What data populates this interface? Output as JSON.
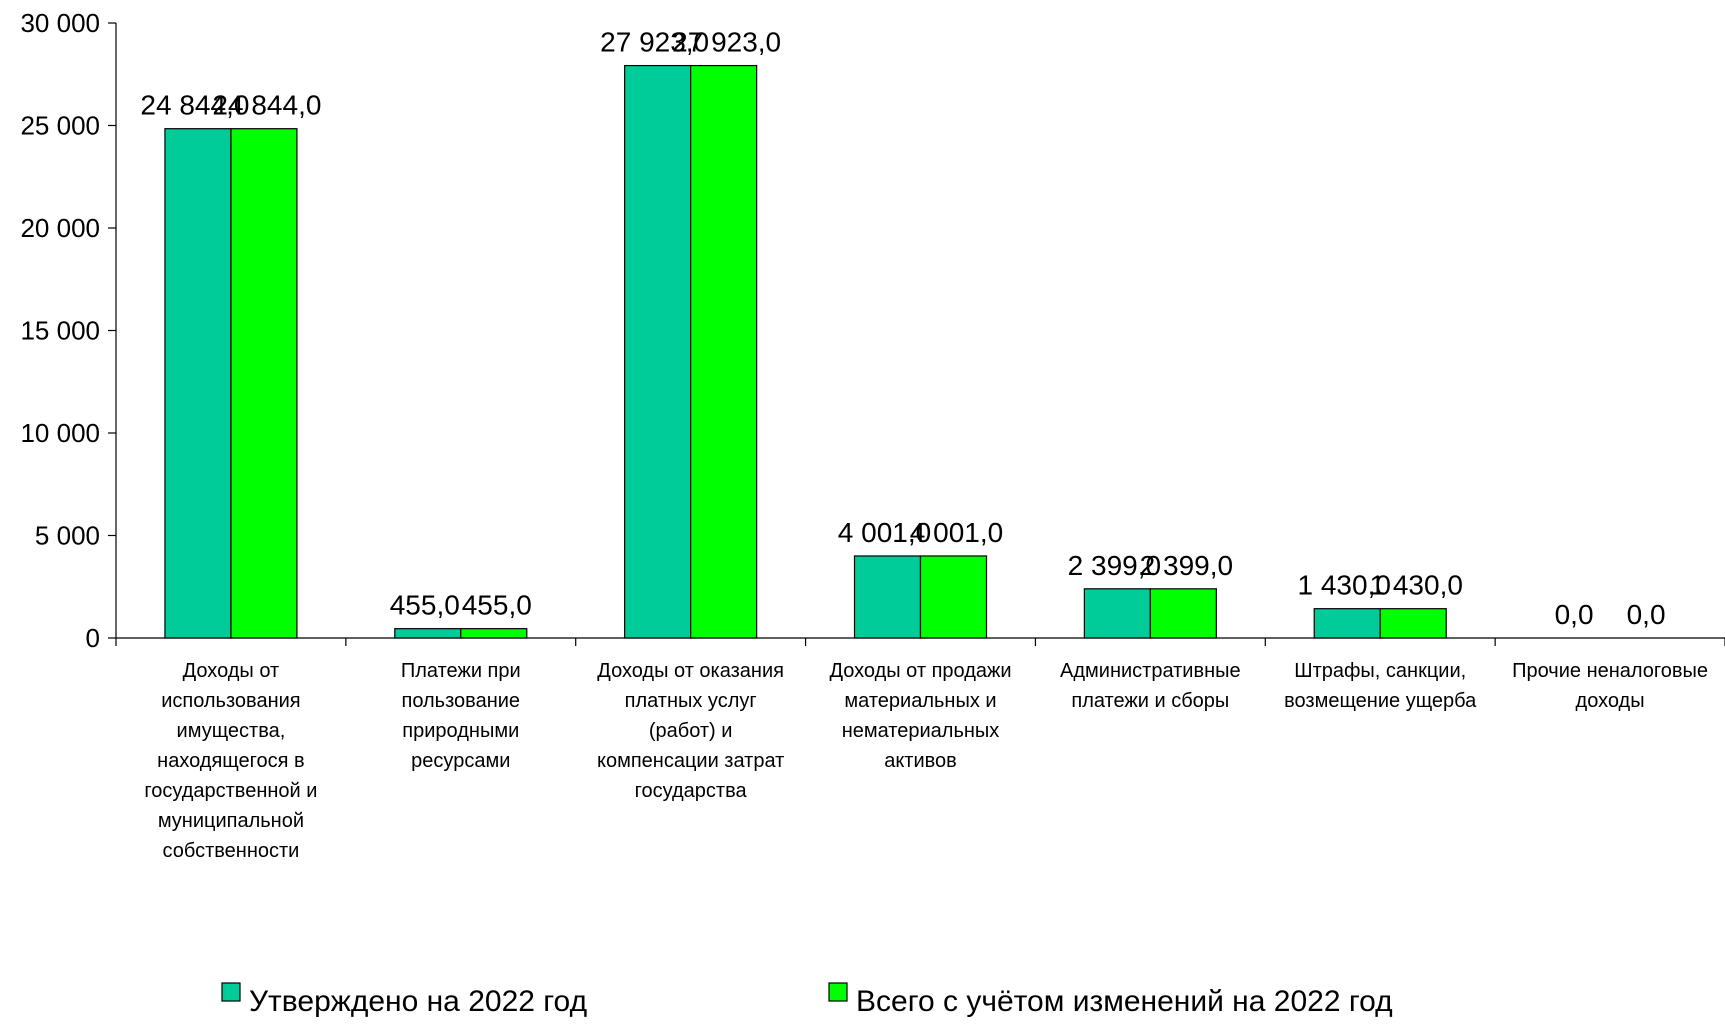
{
  "chart_data": {
    "type": "bar",
    "title": "",
    "xlabel": "",
    "ylabel": "",
    "ylim": [
      0,
      30000
    ],
    "yticks": [
      0,
      5000,
      10000,
      15000,
      20000,
      25000,
      30000
    ],
    "ytick_labels": [
      "0",
      "5 000",
      "10 000",
      "15 000",
      "20 000",
      "25 000",
      "30 000"
    ],
    "grid": false,
    "legend_position": "bottom",
    "categories": [
      [
        "Доходы от",
        "использования",
        "имущества,",
        "находящегося в",
        "государственной и",
        "муниципальной",
        "собственности"
      ],
      [
        "Платежи при",
        "пользование",
        "природными",
        "ресурсами"
      ],
      [
        "Доходы от оказания",
        "платных услуг",
        "(работ) и",
        "компенсации затрат",
        "государства"
      ],
      [
        "Доходы от продажи",
        "материальных и",
        "нематериальных",
        "активов"
      ],
      [
        "Административные",
        "платежи и сборы"
      ],
      [
        "Штрафы, санкции,",
        "возмещение ущерба"
      ],
      [
        "Прочие неналоговые",
        "доходы"
      ]
    ],
    "series": [
      {
        "name": "Утверждено на 2022 год",
        "color": "#00CC99",
        "values": [
          24844.0,
          455.0,
          27923.0,
          4001.0,
          2399.0,
          1430.0,
          0.0
        ],
        "labels": [
          "24 844,0",
          "455,0",
          "27 923,0",
          "4 001,0",
          "2 399,0",
          "1 430,0",
          "0,0"
        ]
      },
      {
        "name": "Всего с учётом изменений на 2022 год",
        "color": "#00FF00",
        "values": [
          24844.0,
          455.0,
          27923.0,
          4001.0,
          2399.0,
          1430.0,
          0.0
        ],
        "labels": [
          "24 844,0",
          "455,0",
          "27 923,0",
          "4 001,0",
          "2 399,0",
          "1 430,0",
          "0,0"
        ]
      }
    ]
  }
}
